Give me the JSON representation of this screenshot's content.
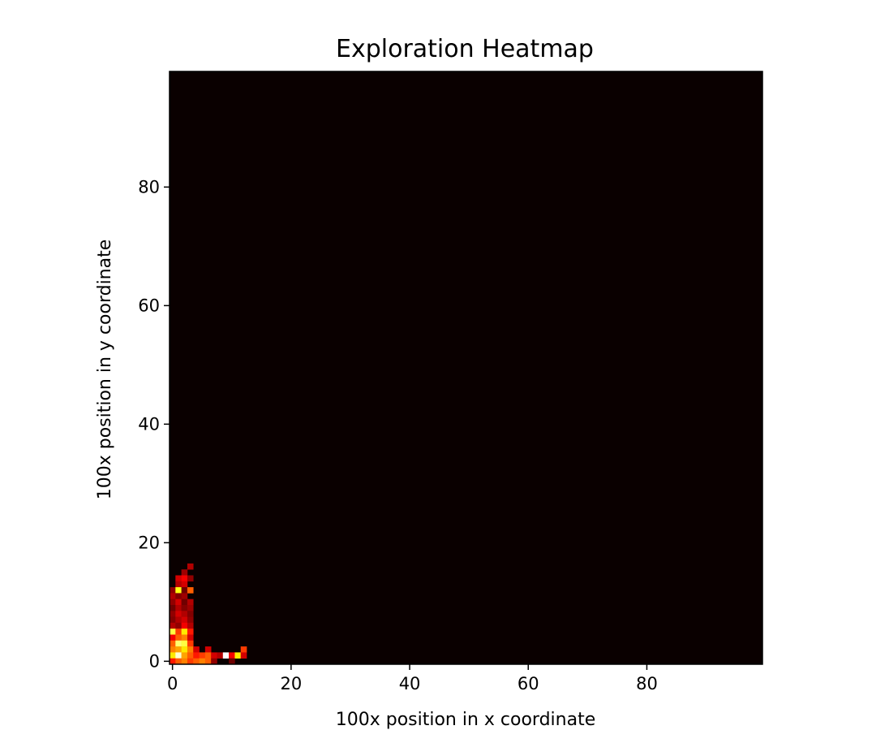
{
  "chart_data": {
    "type": "heatmap",
    "title": "Exploration Heatmap",
    "xlabel": "100x position in x coordinate",
    "ylabel": "100x position in y coordinate",
    "grid": false,
    "colormap": "hot",
    "xlim": [
      0,
      100
    ],
    "ylim": [
      0,
      100
    ],
    "xticks": [
      0,
      20,
      40,
      60,
      80
    ],
    "yticks": [
      0,
      20,
      40,
      60,
      80
    ],
    "background_value": 0,
    "background_color": "#0a0000",
    "cells": [
      {
        "x": 3,
        "y": 16,
        "v": 0.25
      },
      {
        "x": 2,
        "y": 15,
        "v": 0.22
      },
      {
        "x": 1,
        "y": 14,
        "v": 0.3
      },
      {
        "x": 2,
        "y": 14,
        "v": 0.35
      },
      {
        "x": 3,
        "y": 14,
        "v": 0.2
      },
      {
        "x": 1,
        "y": 13,
        "v": 0.25
      },
      {
        "x": 2,
        "y": 13,
        "v": 0.3
      },
      {
        "x": 0,
        "y": 12,
        "v": 0.2
      },
      {
        "x": 1,
        "y": 12,
        "v": 0.75
      },
      {
        "x": 2,
        "y": 12,
        "v": 0.15
      },
      {
        "x": 3,
        "y": 12,
        "v": 0.5
      },
      {
        "x": 0,
        "y": 11,
        "v": 0.25
      },
      {
        "x": 1,
        "y": 11,
        "v": 0.18
      },
      {
        "x": 2,
        "y": 11,
        "v": 0.22
      },
      {
        "x": 0,
        "y": 10,
        "v": 0.2
      },
      {
        "x": 1,
        "y": 10,
        "v": 0.3
      },
      {
        "x": 2,
        "y": 10,
        "v": 0.15
      },
      {
        "x": 3,
        "y": 10,
        "v": 0.25
      },
      {
        "x": 0,
        "y": 9,
        "v": 0.15
      },
      {
        "x": 1,
        "y": 9,
        "v": 0.25
      },
      {
        "x": 2,
        "y": 9,
        "v": 0.18
      },
      {
        "x": 3,
        "y": 9,
        "v": 0.22
      },
      {
        "x": 0,
        "y": 8,
        "v": 0.2
      },
      {
        "x": 1,
        "y": 8,
        "v": 0.3
      },
      {
        "x": 2,
        "y": 8,
        "v": 0.25
      },
      {
        "x": 3,
        "y": 8,
        "v": 0.18
      },
      {
        "x": 0,
        "y": 7,
        "v": 0.18
      },
      {
        "x": 1,
        "y": 7,
        "v": 0.25
      },
      {
        "x": 2,
        "y": 7,
        "v": 0.3
      },
      {
        "x": 3,
        "y": 7,
        "v": 0.2
      },
      {
        "x": 0,
        "y": 6,
        "v": 0.25
      },
      {
        "x": 1,
        "y": 6,
        "v": 0.2
      },
      {
        "x": 2,
        "y": 6,
        "v": 0.35
      },
      {
        "x": 3,
        "y": 6,
        "v": 0.25
      },
      {
        "x": 0,
        "y": 5,
        "v": 0.8
      },
      {
        "x": 1,
        "y": 5,
        "v": 0.45
      },
      {
        "x": 2,
        "y": 5,
        "v": 0.7
      },
      {
        "x": 3,
        "y": 5,
        "v": 0.4
      },
      {
        "x": 0,
        "y": 4,
        "v": 0.35
      },
      {
        "x": 1,
        "y": 4,
        "v": 0.5
      },
      {
        "x": 2,
        "y": 4,
        "v": 0.55
      },
      {
        "x": 3,
        "y": 4,
        "v": 0.3
      },
      {
        "x": 0,
        "y": 3,
        "v": 0.5
      },
      {
        "x": 1,
        "y": 3,
        "v": 0.85
      },
      {
        "x": 2,
        "y": 3,
        "v": 0.8
      },
      {
        "x": 3,
        "y": 3,
        "v": 0.45
      },
      {
        "x": 0,
        "y": 2,
        "v": 0.55
      },
      {
        "x": 1,
        "y": 2,
        "v": 0.6
      },
      {
        "x": 2,
        "y": 2,
        "v": 0.7
      },
      {
        "x": 3,
        "y": 2,
        "v": 0.55
      },
      {
        "x": 4,
        "y": 2,
        "v": 0.3
      },
      {
        "x": 6,
        "y": 2,
        "v": 0.3
      },
      {
        "x": 12,
        "y": 2,
        "v": 0.45
      },
      {
        "x": 0,
        "y": 1,
        "v": 0.7
      },
      {
        "x": 1,
        "y": 1,
        "v": 0.95
      },
      {
        "x": 2,
        "y": 1,
        "v": 0.6
      },
      {
        "x": 3,
        "y": 1,
        "v": 0.5
      },
      {
        "x": 4,
        "y": 1,
        "v": 0.4
      },
      {
        "x": 5,
        "y": 1,
        "v": 0.45
      },
      {
        "x": 6,
        "y": 1,
        "v": 0.5
      },
      {
        "x": 7,
        "y": 1,
        "v": 0.3
      },
      {
        "x": 8,
        "y": 1,
        "v": 0.25
      },
      {
        "x": 9,
        "y": 1,
        "v": 1.0
      },
      {
        "x": 10,
        "y": 1,
        "v": 0.35
      },
      {
        "x": 11,
        "y": 1,
        "v": 0.7
      },
      {
        "x": 12,
        "y": 1,
        "v": 0.3
      },
      {
        "x": 0,
        "y": 0,
        "v": 0.4
      },
      {
        "x": 1,
        "y": 0,
        "v": 0.5
      },
      {
        "x": 2,
        "y": 0,
        "v": 0.55
      },
      {
        "x": 3,
        "y": 0,
        "v": 0.45
      },
      {
        "x": 4,
        "y": 0,
        "v": 0.5
      },
      {
        "x": 5,
        "y": 0,
        "v": 0.55
      },
      {
        "x": 6,
        "y": 0,
        "v": 0.5
      },
      {
        "x": 7,
        "y": 0,
        "v": 0.2
      },
      {
        "x": 10,
        "y": 0,
        "v": 0.15
      }
    ]
  }
}
